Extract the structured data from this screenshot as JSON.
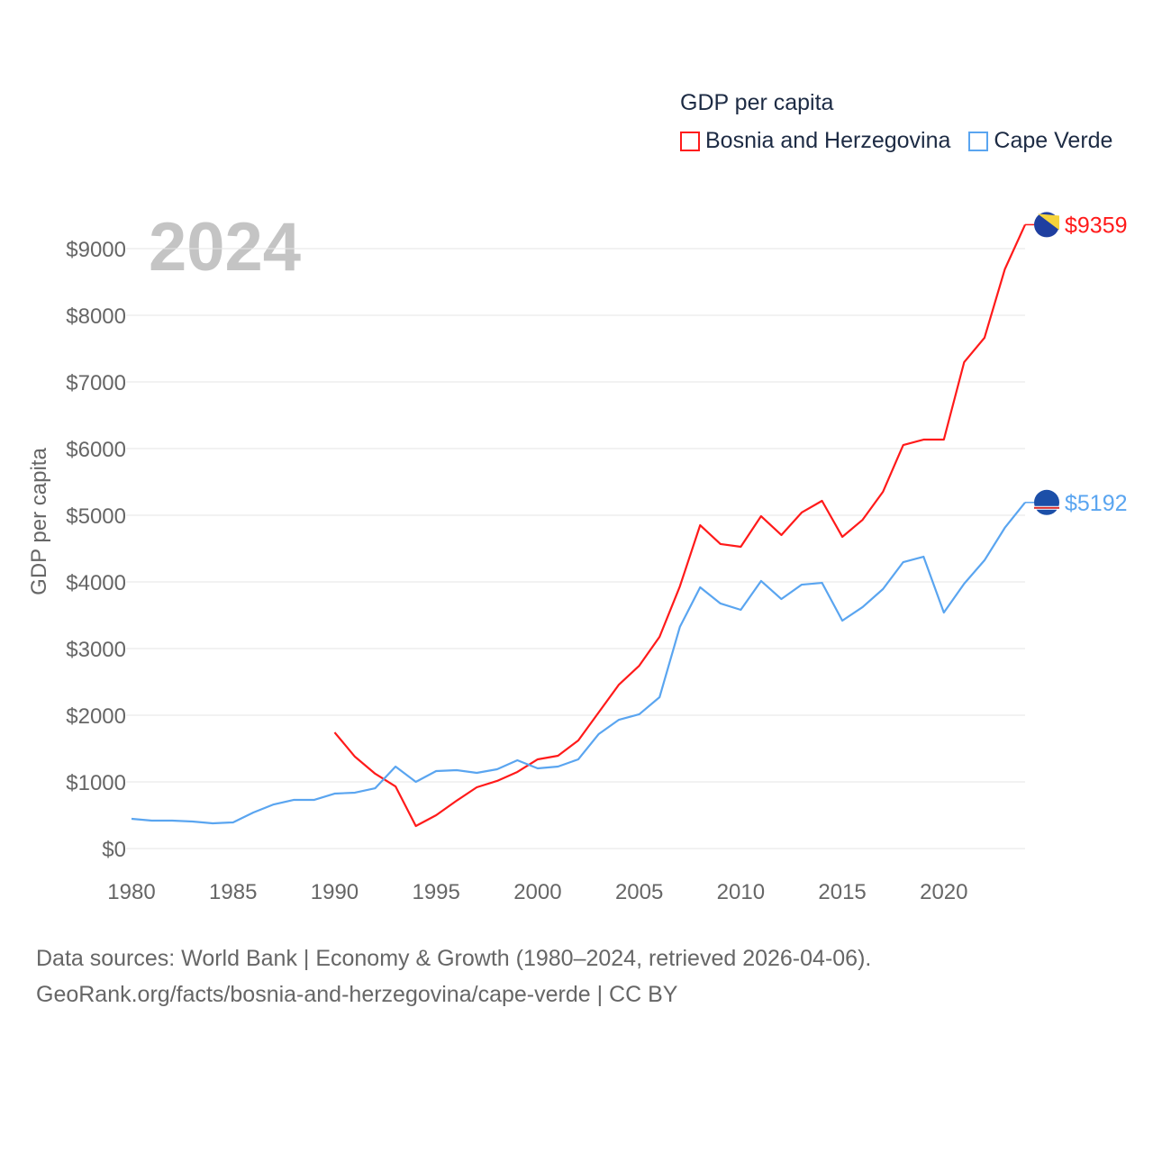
{
  "chart_data": {
    "type": "line",
    "title": "GDP per capita",
    "year_label": "2024",
    "ylabel": "GDP per capita",
    "xlabel": "",
    "ylim": [
      0,
      9000
    ],
    "xlim": [
      1980,
      2024
    ],
    "yticks": [
      0,
      1000,
      2000,
      3000,
      4000,
      5000,
      6000,
      7000,
      8000,
      9000
    ],
    "ytick_labels": [
      "$0",
      "$1000",
      "$2000",
      "$3000",
      "$4000",
      "$5000",
      "$6000",
      "$7000",
      "$8000",
      "$9000"
    ],
    "xticks": [
      1980,
      1985,
      1990,
      1995,
      2000,
      2005,
      2010,
      2015,
      2020
    ],
    "xtick_labels": [
      "1980",
      "1985",
      "1990",
      "1995",
      "2000",
      "2005",
      "2010",
      "2015",
      "2020"
    ],
    "grid": true,
    "legend_position": "top-right",
    "series": [
      {
        "name": "Bosnia and Herzegovina",
        "color": "#ff1a1a",
        "end_label": "$9359",
        "x": [
          1990,
          1991,
          1992,
          1993,
          1994,
          1995,
          1996,
          1997,
          1998,
          1999,
          2000,
          2001,
          2002,
          2003,
          2004,
          2005,
          2006,
          2007,
          2008,
          2009,
          2010,
          2011,
          2012,
          2013,
          2014,
          2015,
          2016,
          2017,
          2018,
          2019,
          2020,
          2021,
          2022,
          2023,
          2024
        ],
        "values": [
          1743,
          1378,
          1122,
          932,
          338,
          500,
          716,
          919,
          1014,
          1149,
          1338,
          1392,
          1622,
          2041,
          2459,
          2743,
          3176,
          3932,
          4851,
          4568,
          4527,
          4986,
          4703,
          5041,
          5216,
          4676,
          4932,
          5351,
          6054,
          6135,
          6135,
          7297,
          7662,
          8689,
          9359
        ]
      },
      {
        "name": "Cape Verde",
        "color": "#5aa5f0",
        "end_label": "$5192",
        "x": [
          1980,
          1981,
          1982,
          1983,
          1984,
          1985,
          1986,
          1987,
          1988,
          1989,
          1990,
          1991,
          1992,
          1993,
          1994,
          1995,
          1996,
          1997,
          1998,
          1999,
          2000,
          2001,
          2002,
          2003,
          2004,
          2005,
          2006,
          2007,
          2008,
          2009,
          2010,
          2011,
          2012,
          2013,
          2014,
          2015,
          2016,
          2017,
          2018,
          2019,
          2020,
          2021,
          2022,
          2023,
          2024
        ],
        "values": [
          446,
          419,
          419,
          405,
          378,
          392,
          540,
          662,
          730,
          730,
          824,
          838,
          905,
          1230,
          1000,
          1162,
          1176,
          1135,
          1189,
          1324,
          1203,
          1230,
          1338,
          1716,
          1932,
          2014,
          2270,
          3324,
          3919,
          3676,
          3581,
          4014,
          3743,
          3959,
          3986,
          3419,
          3622,
          3892,
          4297,
          4378,
          3541,
          3973,
          4324,
          4811,
          5192
        ]
      }
    ]
  },
  "footer": {
    "line1": "Data sources: World Bank | Economy & Growth (1980–2024, retrieved 2026-04-06).",
    "line2": "GeoRank.org/facts/bosnia-and-herzegovina/cape-verde | CC BY"
  }
}
